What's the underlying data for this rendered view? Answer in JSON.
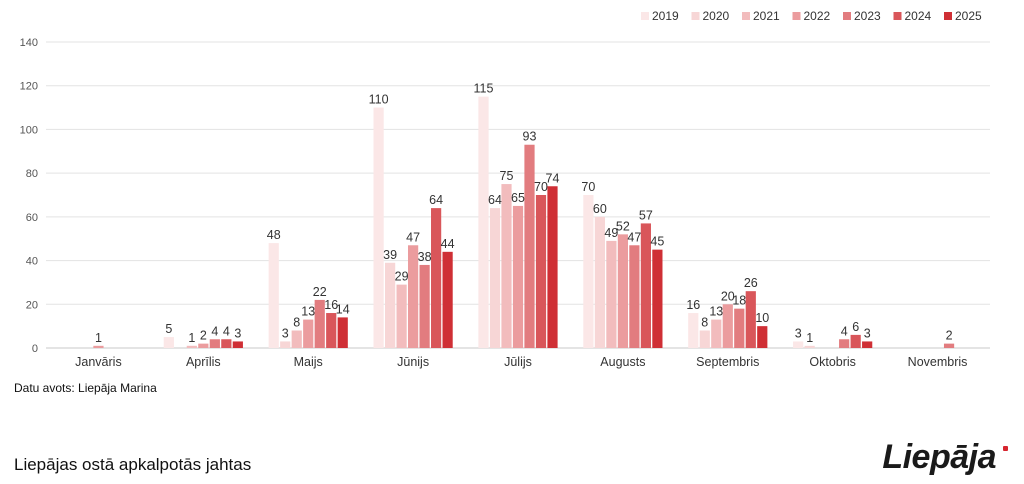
{
  "chart_data": {
    "type": "bar",
    "categories": [
      "Janvāris",
      "Aprīlis",
      "Maijs",
      "Jūnijs",
      "Jūlijs",
      "Augusts",
      "Septembris",
      "Oktobris",
      "Novembris"
    ],
    "series": [
      {
        "name": "2019",
        "color": "#fbe7e7",
        "values": [
          null,
          5,
          48,
          110,
          115,
          70,
          16,
          3,
          null
        ]
      },
      {
        "name": "2020",
        "color": "#f7d6d6",
        "values": [
          null,
          null,
          3,
          39,
          64,
          60,
          8,
          1,
          null
        ]
      },
      {
        "name": "2021",
        "color": "#f2bcbd",
        "values": [
          null,
          1,
          8,
          29,
          75,
          49,
          13,
          null,
          null
        ]
      },
      {
        "name": "2022",
        "color": "#eb9c9e",
        "values": [
          1,
          2,
          13,
          47,
          65,
          52,
          20,
          null,
          null
        ]
      },
      {
        "name": "2023",
        "color": "#e27c7f",
        "values": [
          null,
          4,
          22,
          38,
          93,
          47,
          18,
          4,
          2
        ]
      },
      {
        "name": "2024",
        "color": "#d9565a",
        "values": [
          null,
          4,
          16,
          64,
          70,
          57,
          26,
          6,
          null
        ]
      },
      {
        "name": "2025",
        "color": "#cf2f35",
        "values": [
          null,
          3,
          14,
          44,
          74,
          45,
          10,
          3,
          null
        ]
      }
    ],
    "y_ticks": [
      "0",
      "20",
      "40",
      "60",
      "80",
      "100",
      "120",
      "140"
    ],
    "ylim": [
      0,
      140
    ],
    "grid": true,
    "legend_position": "top-right"
  },
  "source": "Datu avots: Liepāja Marina",
  "footer_title": "Liepājas ostā apkalpotās jahtas",
  "logo_text": "Liepāja"
}
